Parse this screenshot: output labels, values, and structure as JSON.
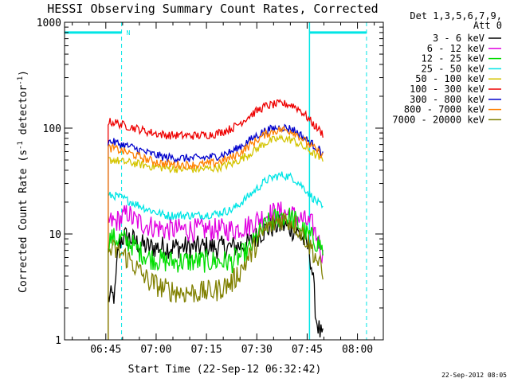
{
  "chart_data": {
    "type": "line",
    "title": "HESSI Observing Summary Count Rates, Corrected",
    "xlabel": "Start Time (22-Sep-12 06:32:42)",
    "ylabel_main": "Corrected Count Rate (s",
    "ylabel_sup1": "-1",
    "ylabel_mid": " detector",
    "ylabel_sup2": "-1",
    "ylabel_end": ")",
    "y_scale": "log",
    "ylim": [
      1,
      1000
    ],
    "xlim_minutes": [
      0,
      95
    ],
    "x_ticks": [
      "06:45",
      "07:00",
      "07:15",
      "07:30",
      "07:45",
      "08:00"
    ],
    "x_tick_minutes": [
      12.3,
      27.3,
      42.3,
      57.3,
      72.3,
      87.3
    ],
    "y_ticks": [
      "1",
      "10",
      "100",
      "1000"
    ],
    "y_tick_values": [
      1,
      10,
      100,
      1000
    ],
    "legend_header": [
      "Det 1,3,5,6,7,9,",
      "Att 0"
    ],
    "legend_position": "right",
    "night_label": "N",
    "night_segments_minutes": [
      [
        0,
        17
      ],
      [
        73,
        90
      ]
    ],
    "night_level": 800,
    "night_dashed_lines_minutes": [
      17,
      90
    ],
    "night_solid_lines_minutes": [
      73
    ],
    "series": [
      {
        "name": "3 - 6 keV",
        "color": "#000000",
        "x": [
          13,
          15,
          16,
          17,
          18,
          20,
          22,
          25,
          30,
          35,
          40,
          45,
          50,
          55,
          58,
          60,
          63,
          65,
          67,
          70,
          72,
          73,
          74,
          75,
          76,
          77
        ],
        "values": [
          2.5,
          2.6,
          7.5,
          9,
          9.5,
          9,
          8,
          7.5,
          7.5,
          7.5,
          7.5,
          7.5,
          7.5,
          8,
          10,
          11,
          12,
          12,
          11.5,
          10,
          8,
          7,
          4,
          1.6,
          1.2,
          1
        ]
      },
      {
        "name": "6 - 12 keV",
        "color": "#e000e0",
        "x": [
          13,
          15,
          17,
          19,
          20,
          22,
          25,
          30,
          35,
          40,
          45,
          50,
          55,
          58,
          60,
          63,
          65,
          68,
          70,
          72,
          74,
          76,
          77
        ],
        "values": [
          13,
          13,
          14,
          16,
          14,
          13,
          12,
          11,
          11,
          11,
          11,
          11,
          12,
          14,
          15,
          16,
          16,
          15,
          14,
          13,
          12,
          8,
          6
        ]
      },
      {
        "name": "12 - 25 keV",
        "color": "#00dd00",
        "x": [
          13,
          15,
          17,
          20,
          22,
          25,
          30,
          35,
          40,
          45,
          50,
          55,
          58,
          60,
          63,
          65,
          68,
          70,
          72,
          74,
          76,
          77
        ],
        "values": [
          9,
          9,
          9,
          8,
          7,
          6,
          5.5,
          5.5,
          5.5,
          5.5,
          5.5,
          7,
          10,
          12,
          14,
          15,
          14,
          12,
          10,
          9,
          8,
          7
        ]
      },
      {
        "name": "25 - 50 keV",
        "color": "#00e5e5",
        "x": [
          13,
          15,
          17,
          20,
          25,
          30,
          35,
          40,
          45,
          50,
          52,
          55,
          58,
          60,
          63,
          65,
          68,
          70,
          72,
          74,
          76,
          77
        ],
        "values": [
          23,
          23,
          22,
          20,
          17,
          15,
          15,
          15,
          15.5,
          17,
          19,
          23,
          28,
          32,
          35,
          36,
          34,
          30,
          26,
          22,
          19,
          17
        ]
      },
      {
        "name": "50 - 100 keV",
        "color": "#d4c400",
        "x": [
          13,
          15,
          17,
          20,
          25,
          30,
          35,
          40,
          45,
          50,
          52,
          55,
          58,
          60,
          63,
          65,
          68,
          70,
          72,
          74,
          76,
          77
        ],
        "values": [
          50,
          50,
          48,
          47,
          44,
          42,
          41,
          41,
          42,
          46,
          50,
          57,
          66,
          73,
          78,
          80,
          77,
          70,
          64,
          58,
          52,
          50
        ]
      },
      {
        "name": "100 - 300 keV",
        "color": "#ee0000",
        "x": [
          13,
          15,
          17,
          20,
          25,
          30,
          35,
          40,
          45,
          50,
          52,
          55,
          58,
          60,
          63,
          65,
          68,
          70,
          72,
          74,
          76,
          77
        ],
        "values": [
          115,
          113,
          108,
          102,
          92,
          86,
          85,
          85,
          88,
          100,
          110,
          130,
          150,
          162,
          168,
          170,
          165,
          150,
          130,
          110,
          95,
          88
        ]
      },
      {
        "name": "300 - 800 keV",
        "color": "#0000cc",
        "x": [
          13,
          15,
          17,
          20,
          25,
          30,
          35,
          40,
          45,
          50,
          52,
          55,
          58,
          60,
          63,
          65,
          68,
          70,
          72,
          74,
          76,
          77
        ],
        "values": [
          75,
          73,
          70,
          66,
          58,
          53,
          52,
          52,
          54,
          60,
          66,
          76,
          88,
          95,
          100,
          102,
          98,
          88,
          78,
          70,
          62,
          58
        ]
      },
      {
        "name": "800 - 7000 keV",
        "color": "#ff8000",
        "x": [
          13,
          15,
          17,
          20,
          25,
          30,
          35,
          40,
          45,
          50,
          52,
          55,
          58,
          60,
          63,
          65,
          68,
          70,
          72,
          74,
          76,
          77
        ],
        "values": [
          65,
          64,
          61,
          57,
          50,
          46,
          45,
          45,
          47,
          53,
          58,
          68,
          80,
          88,
          95,
          97,
          93,
          84,
          74,
          66,
          58,
          55
        ]
      },
      {
        "name": "7000 - 20000 keV",
        "color": "#808000",
        "x": [
          13,
          15,
          17,
          20,
          22,
          25,
          30,
          35,
          40,
          45,
          50,
          55,
          58,
          60,
          63,
          65,
          68,
          70,
          72,
          74,
          76,
          77
        ],
        "values": [
          7,
          7,
          6.5,
          5.5,
          4.5,
          3.6,
          3.0,
          2.8,
          2.8,
          2.9,
          3.5,
          6,
          9,
          11,
          13,
          14,
          13,
          11,
          9,
          7,
          5,
          4
        ]
      }
    ]
  },
  "timestamp": "22-Sep-2012 08:05"
}
